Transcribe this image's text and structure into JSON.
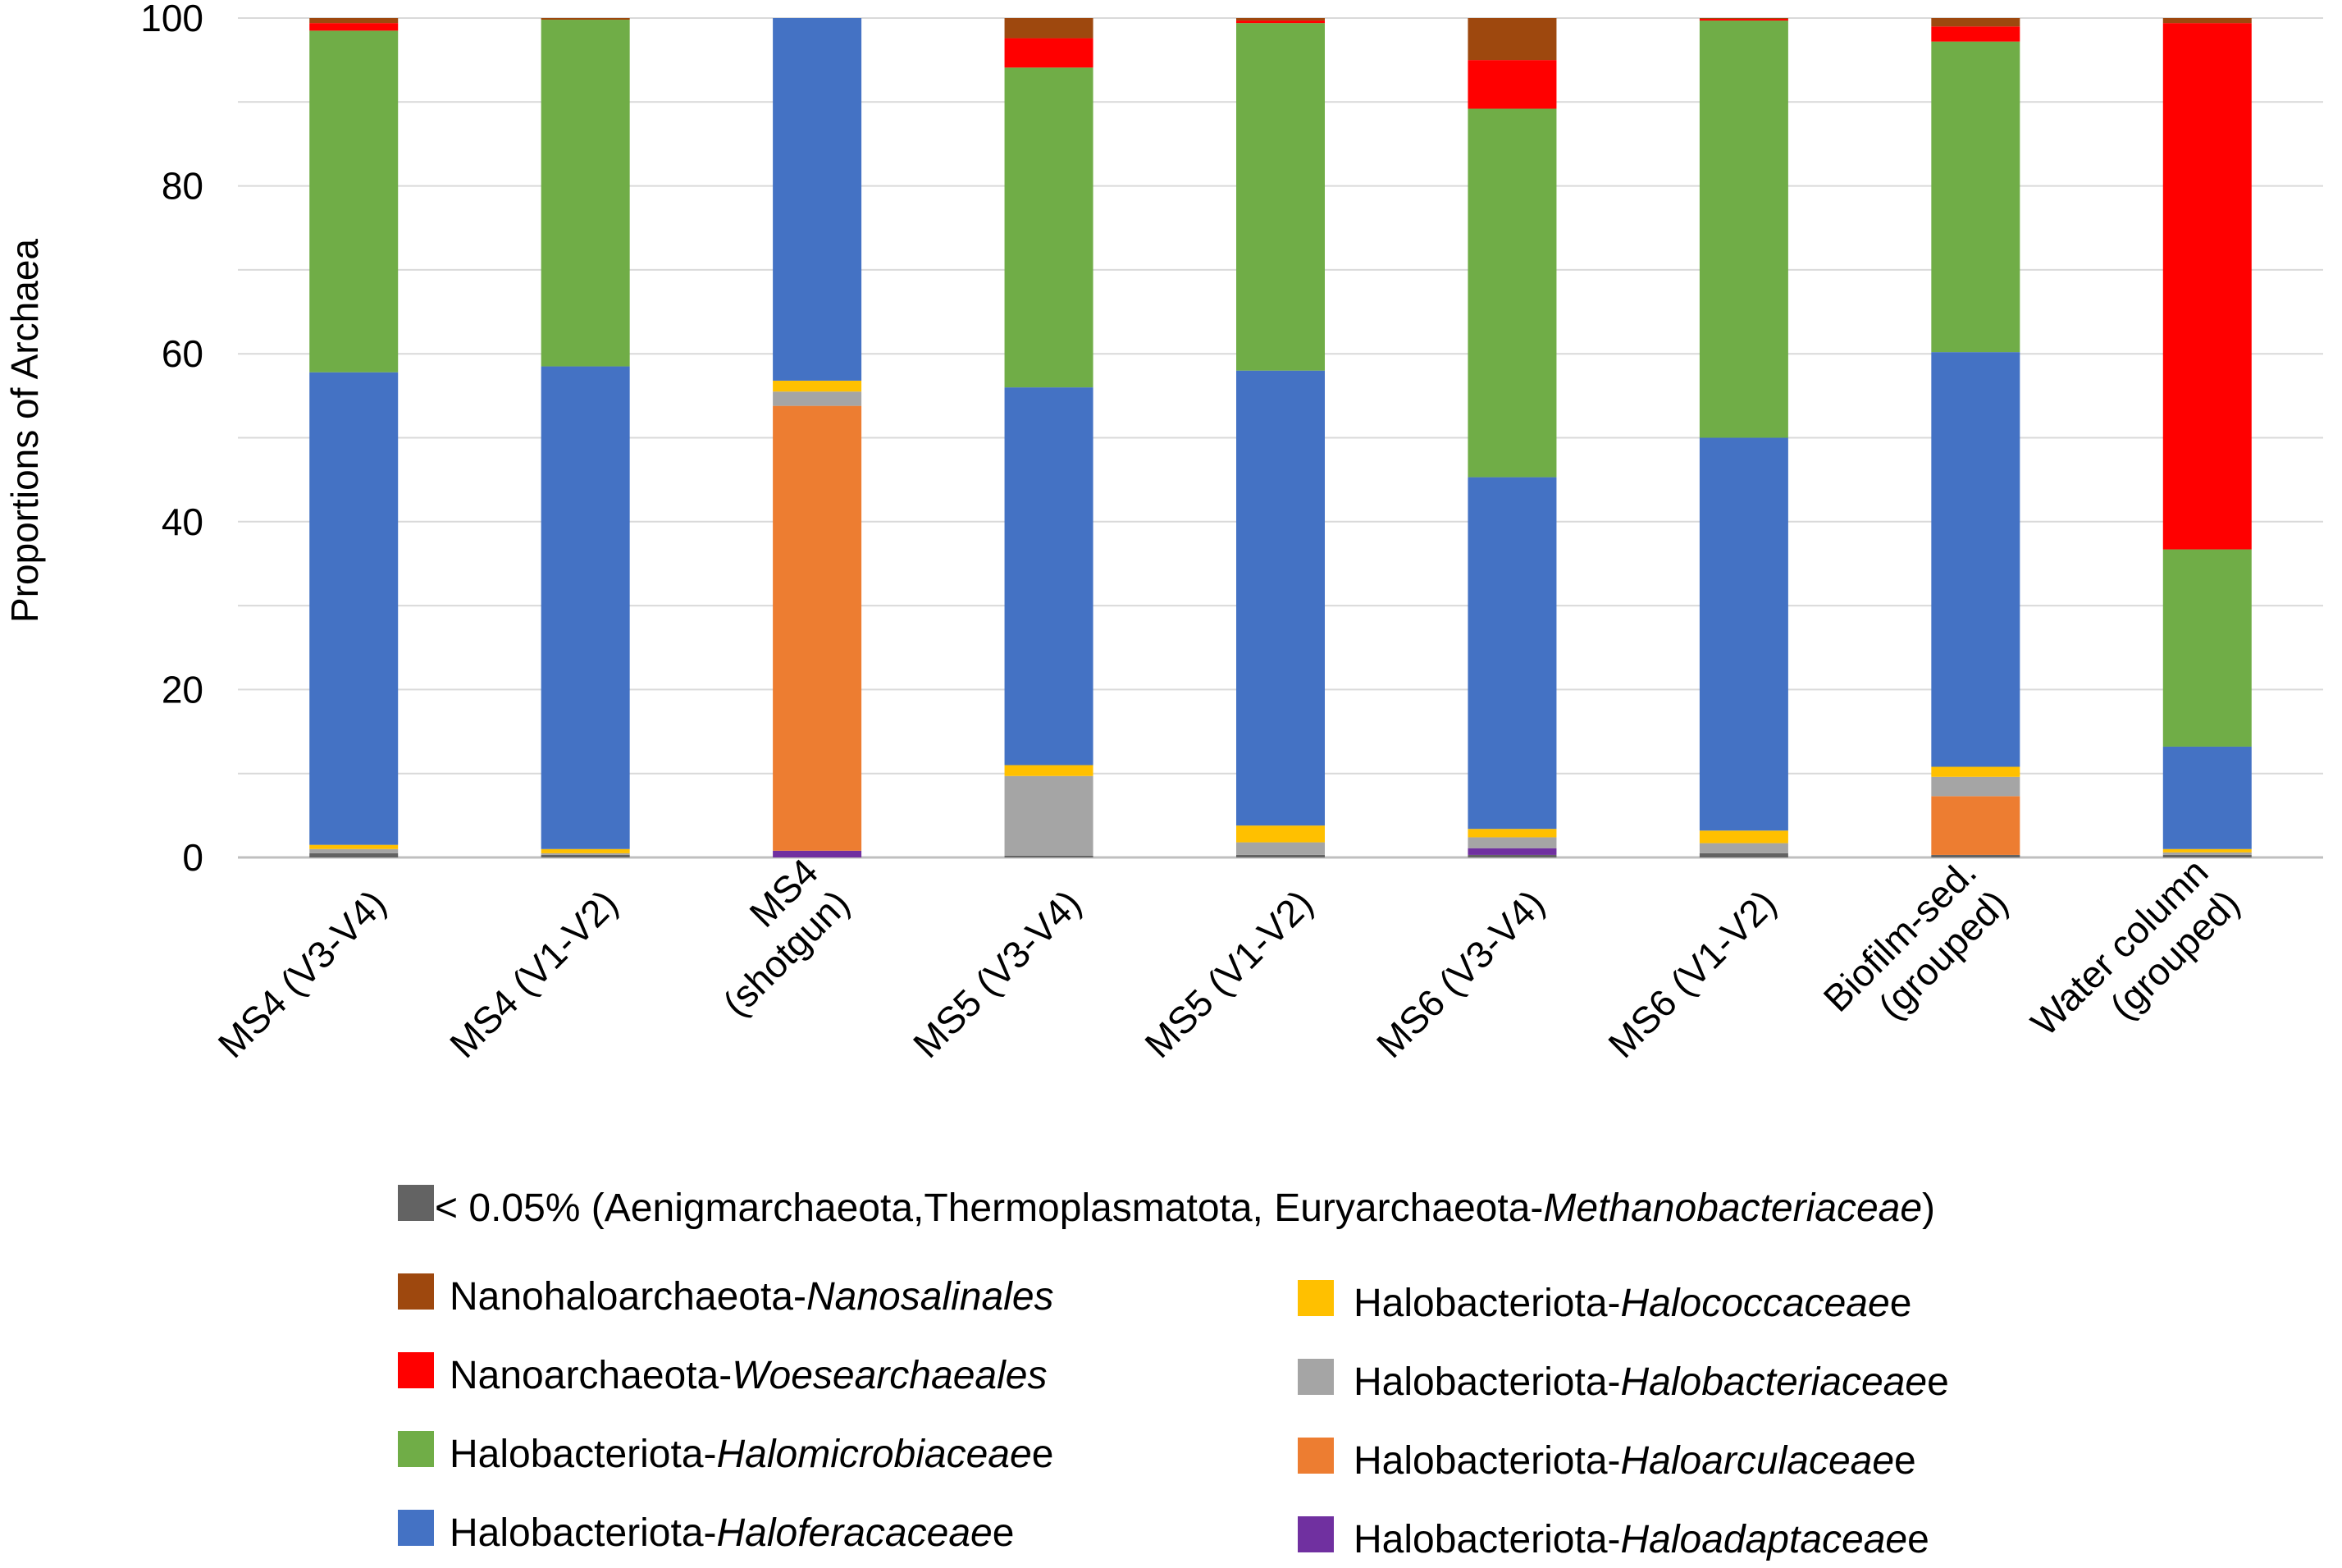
{
  "chart_data": {
    "type": "bar",
    "stacked": true,
    "title": "",
    "xlabel": "",
    "ylabel": "Proportions of Archaea",
    "ylim": [
      0,
      100
    ],
    "yticks": [
      0,
      20,
      40,
      60,
      80,
      100
    ],
    "grid": true,
    "legend_position": "bottom",
    "categories": [
      [
        "MS4 (V3-V4)"
      ],
      [
        "MS4 (V1-V2)"
      ],
      [
        "MS4",
        "(shotgun)"
      ],
      [
        "MS5 (V3-V4)"
      ],
      [
        "MS5 (V1-V2)"
      ],
      [
        "MS6 (V3-V4)"
      ],
      [
        "MS6 (V1-V2)"
      ],
      [
        "Biofilm-sed.",
        "(grouped)"
      ],
      [
        "Water column",
        "(grouped)"
      ]
    ],
    "series": [
      {
        "key": "lt005",
        "color": "#636363",
        "prefix": "< 0.05% (Aenigmarchaeota,Thermoplasmatota, Euryarchaeota-",
        "italic": "Methanobacteriaceae",
        "suffix": ")",
        "values": [
          0.5,
          0.3,
          0.0,
          0.2,
          0.3,
          0.3,
          0.5,
          0.3,
          0.3
        ]
      },
      {
        "key": "haloadaptaceae",
        "color": "#7030A0",
        "prefix": "Halobacteriota-",
        "italic": "Haloadaptaceae",
        "suffix": "e",
        "values": [
          0.0,
          0.0,
          0.8,
          0.0,
          0.0,
          0.8,
          0.0,
          0.0,
          0.0
        ]
      },
      {
        "key": "haloarculaceae",
        "color": "#ED7D31",
        "prefix": "Halobacteriota-",
        "italic": "Haloarculaceae",
        "suffix": "e",
        "values": [
          0.0,
          0.0,
          53.0,
          0.0,
          0.0,
          0.0,
          0.0,
          7.0,
          0.0
        ]
      },
      {
        "key": "halobacteriaceae",
        "color": "#A5A5A5",
        "prefix": "Halobacteriota-",
        "italic": "Halobacteriaceae",
        "suffix": "e",
        "values": [
          0.5,
          0.2,
          1.7,
          9.5,
          1.5,
          1.3,
          1.2,
          2.3,
          0.3
        ]
      },
      {
        "key": "halococcaceae",
        "color": "#FFC000",
        "prefix": "Halobacteriota-",
        "italic": "Halococcaceae",
        "suffix": "e",
        "values": [
          0.5,
          0.5,
          1.3,
          1.3,
          2.0,
          1.0,
          1.5,
          1.2,
          0.4
        ]
      },
      {
        "key": "haloferacaceae",
        "color": "#4472C4",
        "prefix": "Halobacteriota-",
        "italic": "Haloferacaceae",
        "suffix": "e",
        "values": [
          56.3,
          57.5,
          43.2,
          45.0,
          54.2,
          41.9,
          46.8,
          49.4,
          12.2
        ]
      },
      {
        "key": "halomicrobiaceae",
        "color": "#70AD47",
        "prefix": "Halobacteriota-",
        "italic": "Halomicrobiaceae",
        "suffix": "e",
        "values": [
          40.7,
          41.3,
          0.0,
          38.1,
          41.4,
          43.9,
          49.7,
          37.0,
          23.5
        ]
      },
      {
        "key": "woesearchaeales",
        "color": "#FF0000",
        "prefix": "Nanoarchaeota-",
        "italic": "Woesearchaeales",
        "suffix": "",
        "values": [
          0.9,
          0.0,
          0.0,
          3.5,
          0.3,
          5.8,
          0.2,
          1.8,
          62.7
        ]
      },
      {
        "key": "nanosalinales",
        "color": "#9E480E",
        "prefix": "Nanohaloarchaeota-",
        "italic": "Nanosalinales",
        "suffix": "",
        "values": [
          0.6,
          0.2,
          0.0,
          2.4,
          0.3,
          5.0,
          0.1,
          1.0,
          0.6
        ]
      }
    ],
    "legend_order": [
      "lt005",
      "nanosalinales",
      "halococcaceae",
      "woesearchaeales",
      "halobacteriaceae",
      "halomicrobiaceae",
      "haloarculaceae",
      "haloferacaceae",
      "haloadaptaceae"
    ]
  }
}
